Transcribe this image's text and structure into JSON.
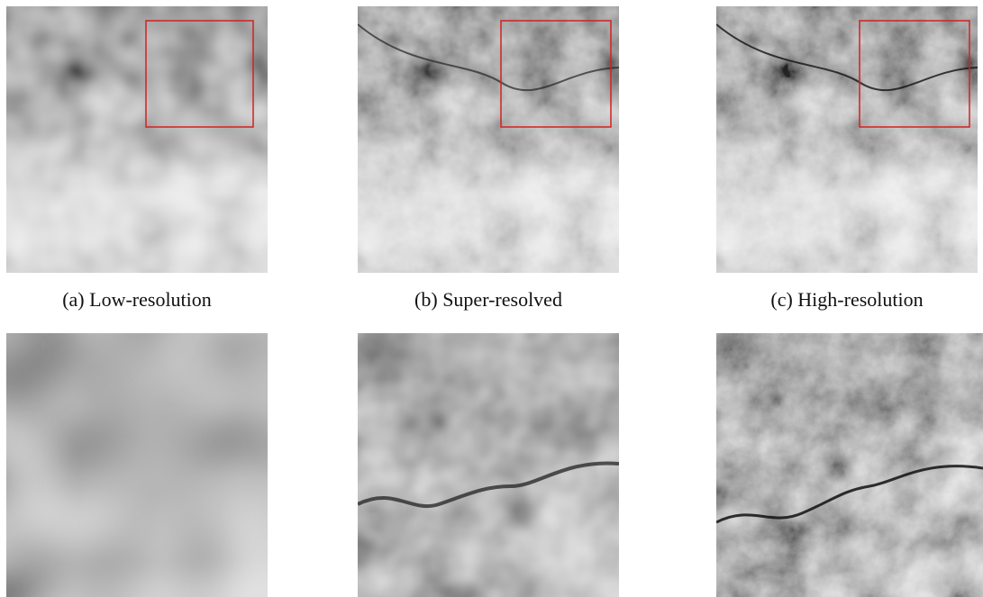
{
  "figure": {
    "captions": [
      "(a) Low-resolution",
      "(b) Super-resolved",
      "(c) High-resolution"
    ]
  }
}
